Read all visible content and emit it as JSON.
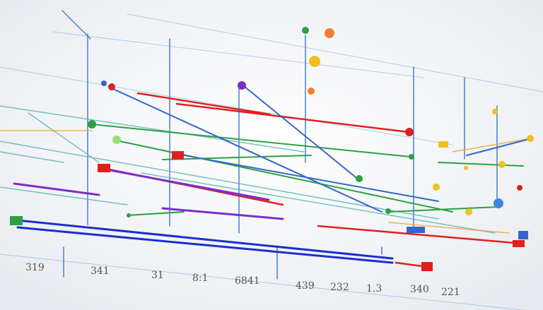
{
  "axis_labels": [
    "319",
    "341",
    "31",
    "8:1",
    "6841",
    "439",
    "232",
    "1.3",
    "340",
    "221"
  ]
}
